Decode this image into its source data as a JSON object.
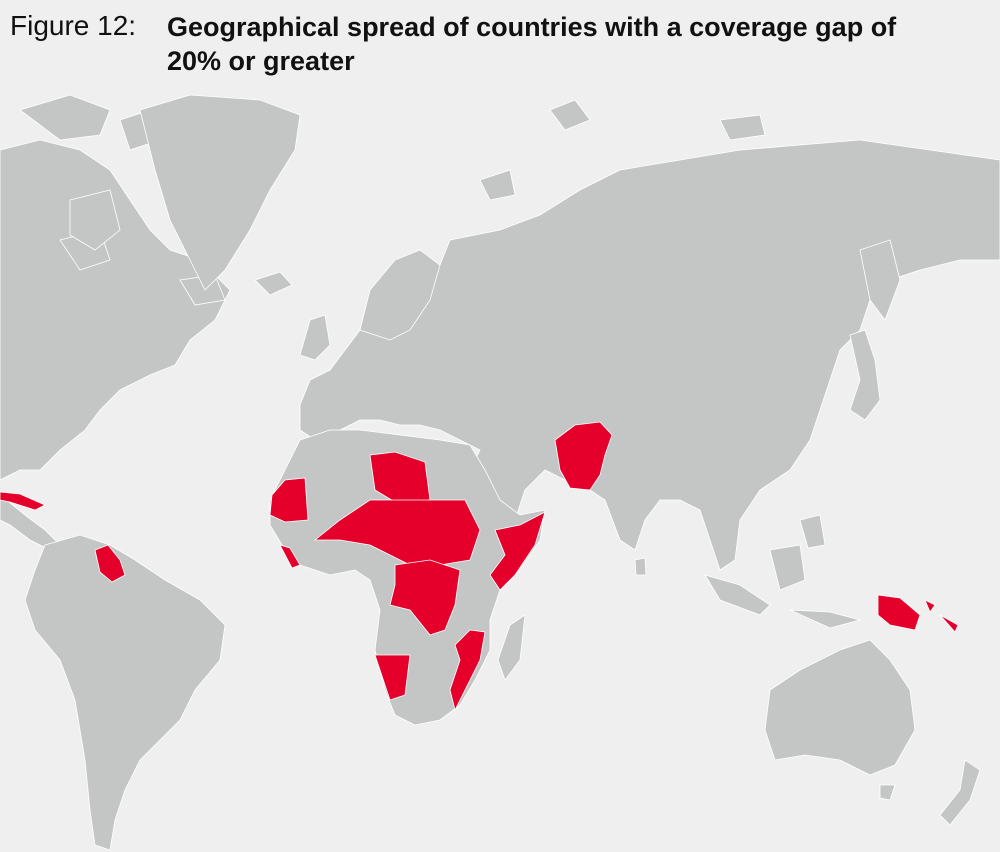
{
  "figure": {
    "label": "Figure 12:",
    "title": "Geographical spread of countries with a coverage gap of 20% or greater"
  }
}
